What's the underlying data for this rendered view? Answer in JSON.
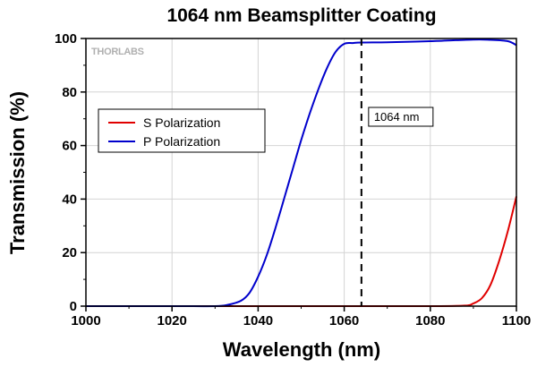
{
  "chart_data": {
    "type": "line",
    "title": "1064 nm Beamsplitter Coating",
    "xlabel": "Wavelength (nm)",
    "ylabel": "Transmission (%)",
    "xlim": [
      1000,
      1100
    ],
    "ylim": [
      0,
      100
    ],
    "x_ticks": [
      1000,
      1020,
      1040,
      1060,
      1080,
      1100
    ],
    "y_ticks": [
      0,
      20,
      40,
      60,
      80,
      100
    ],
    "grid": true,
    "legend_position": "upper-left",
    "watermark": "THORLABS",
    "series": [
      {
        "name": "S Polarization",
        "color": "#e00000",
        "x": [
          1000,
          1020,
          1040,
          1060,
          1080,
          1088,
          1090,
          1092,
          1094,
          1096,
          1098,
          1100
        ],
        "y": [
          0,
          0,
          0,
          0,
          0,
          0.2,
          1,
          3,
          8,
          17,
          28,
          41
        ]
      },
      {
        "name": "P Polarization",
        "color": "#0000cc",
        "x": [
          1000,
          1020,
          1030,
          1033,
          1036,
          1038,
          1040,
          1042,
          1044,
          1046,
          1048,
          1050,
          1052,
          1054,
          1056,
          1058,
          1060,
          1062,
          1064,
          1070,
          1080,
          1090,
          1094,
          1098,
          1100
        ],
        "y": [
          0,
          0,
          0,
          0.5,
          2,
          5,
          11,
          19,
          29,
          40,
          51,
          62,
          72,
          81,
          89,
          95,
          98,
          98.3,
          98.5,
          98.6,
          99,
          99.6,
          99.5,
          99,
          97.5
        ]
      }
    ],
    "annotations": [
      {
        "type": "vline",
        "x": 1064,
        "style": "dashed",
        "label": "1064 nm"
      }
    ]
  }
}
